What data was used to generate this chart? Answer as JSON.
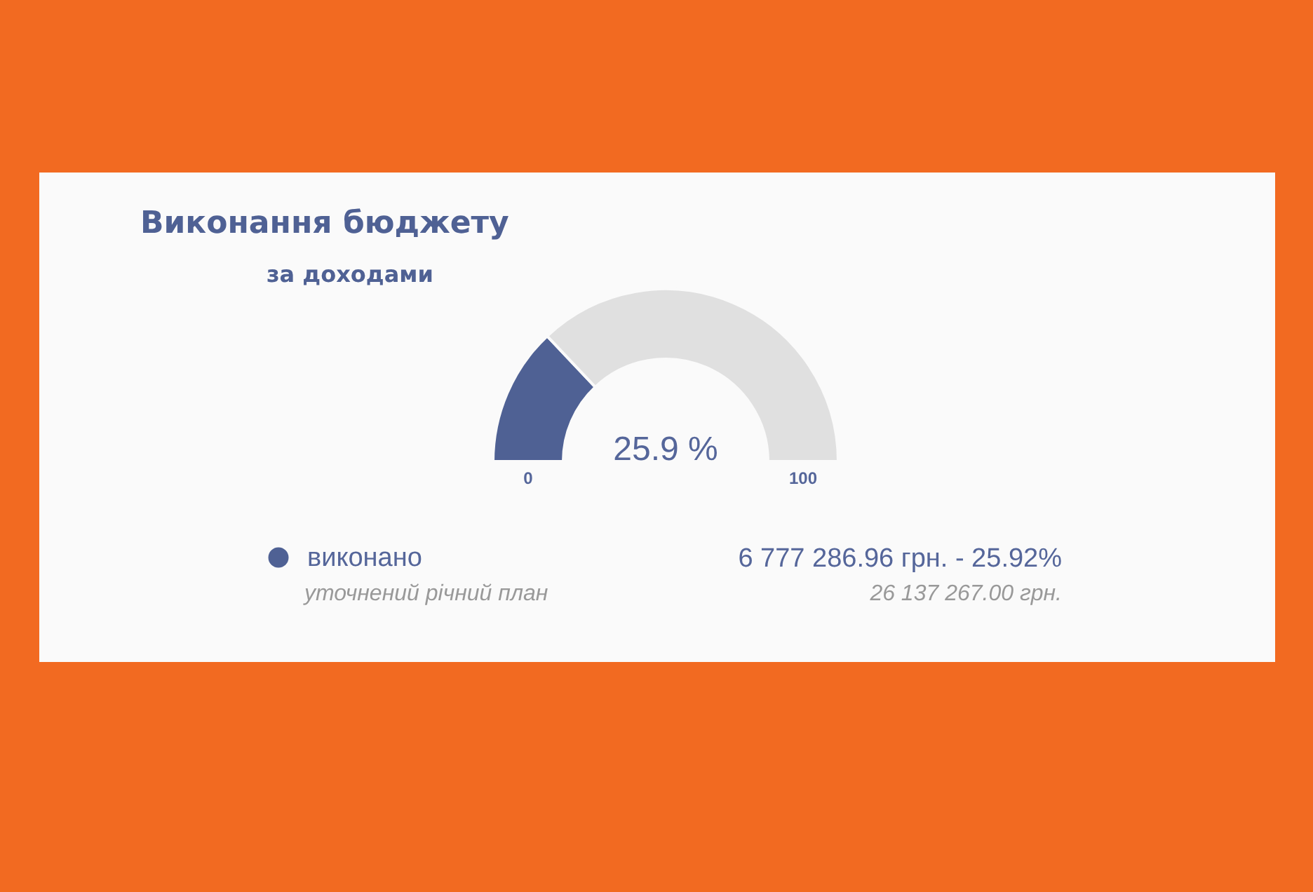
{
  "chart_data": {
    "type": "donut",
    "title": "Виконання бюджету",
    "subtitle": "за доходами",
    "categories": [
      "виконано",
      null
    ],
    "values": [
      25.9,
      74.1
    ],
    "colors": [
      "#4f6194",
      "#e0e0e0"
    ],
    "legend": "bottom",
    "annotations": [
      "25.9 %",
      "0",
      "100",
      "6 777 286.96 грн. - 25.92%",
      "уточнений річний план",
      "26 137 267.00 грн."
    ]
  }
}
